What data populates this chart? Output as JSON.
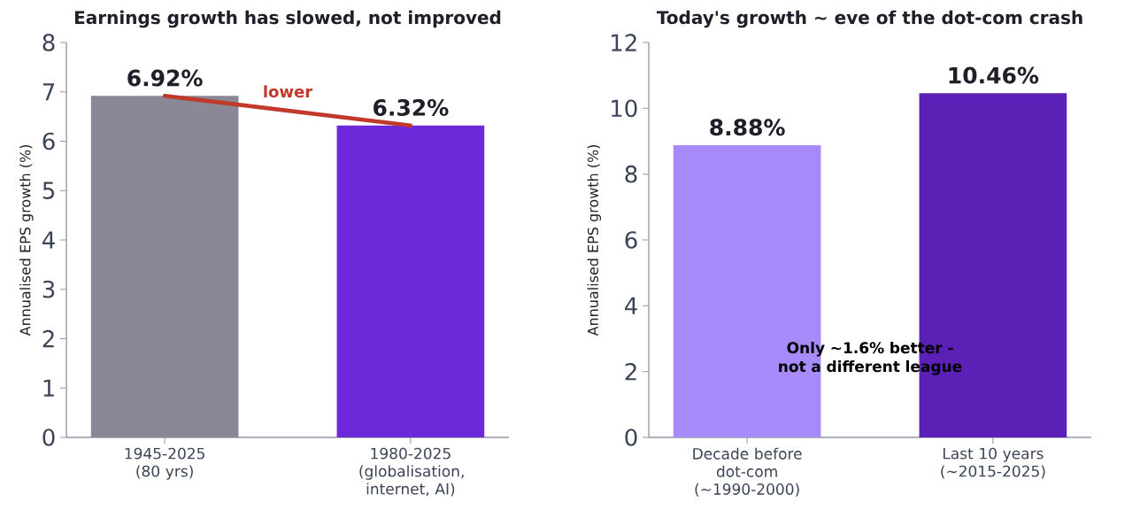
{
  "chart_data": [
    {
      "type": "bar",
      "title": "Earnings growth has slowed, not improved",
      "ylabel": "Annualised EPS growth (%)",
      "categories": [
        "1945-2025 (80 yrs)",
        "1980-2025 (globalisation, internet, AI)"
      ],
      "ylim": [
        0,
        8
      ],
      "yticks": [
        0,
        1,
        2,
        3,
        4,
        5,
        6,
        7,
        8
      ],
      "series": [
        {
          "colors": [
            "#8a8796",
            "#6d28d9"
          ],
          "values": [
            6.92,
            6.32
          ],
          "value_labels": [
            "6.92%",
            "6.32%"
          ]
        },
        {
          "type": "line",
          "name": "lower",
          "color": "#c0392b",
          "values": [
            6.92,
            6.32
          ]
        }
      ]
    },
    {
      "type": "bar",
      "title": "Today's growth ~ eve of the dot-com crash",
      "ylabel": "Annualised EPS growth (%)",
      "categories": [
        "Decade before dot-com (~1990-2000)",
        "Last 10 years (~2015-2025)"
      ],
      "ylim": [
        0,
        12
      ],
      "yticks": [
        0,
        2,
        4,
        6,
        8,
        10,
        12
      ],
      "series": [
        {
          "colors": [
            "#a78bfa",
            "#5b21b6"
          ],
          "values": [
            8.88,
            10.46
          ],
          "value_labels": [
            "8.88%",
            "10.46%"
          ]
        }
      ],
      "annotations": [
        "Only ~1.6% better - not a different league"
      ]
    }
  ]
}
